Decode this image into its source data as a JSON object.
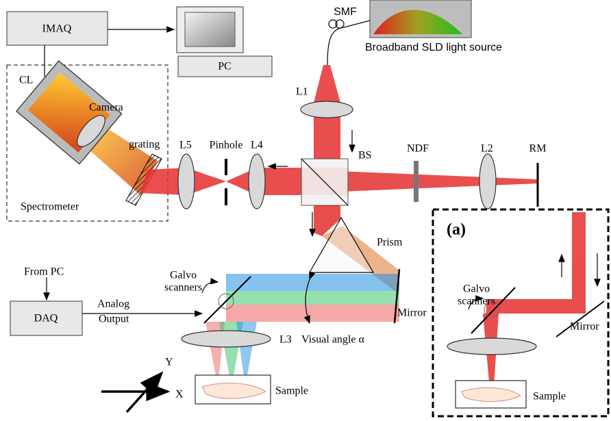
{
  "labels": {
    "imaq": "IMAQ",
    "pc": "PC",
    "smf": "SMF",
    "light_source": "Broadband SLD light source",
    "cl": "CL",
    "camera": "Camera",
    "grating": "grating",
    "spectrometer": "Spectrometer",
    "l5": "L5",
    "pinhole": "Pinhole",
    "l4": "L4",
    "l1": "L1",
    "bs": "BS",
    "ndf": "NDF",
    "l2": "L2",
    "rm": "RM",
    "prism": "Prism",
    "mirror": "Mirror",
    "galvo": [
      "Galvo",
      "scanners"
    ],
    "from_pc": "From PC",
    "daq": "DAQ",
    "analog_output": [
      "Analog",
      "Output"
    ],
    "l3": "L3",
    "visual_angle": "Visual angle α",
    "sample": "Sample",
    "axis_y": "Y",
    "axis_x": "X"
  },
  "inset": {
    "tag": "(a)",
    "galvo": [
      "Galvo",
      "scanners"
    ],
    "mirror": "Mirror",
    "sample": "Sample"
  }
}
